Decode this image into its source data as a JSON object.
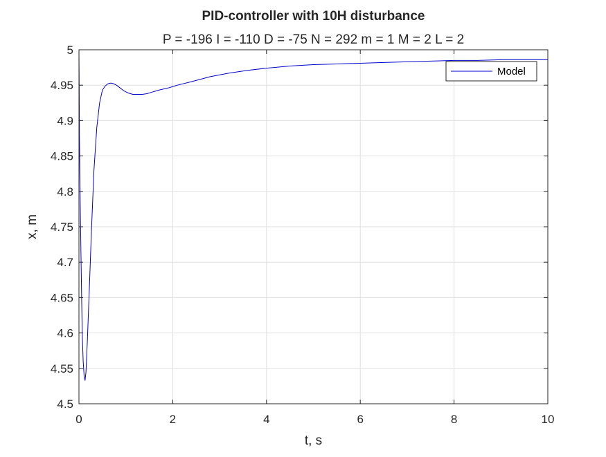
{
  "chart_data": {
    "type": "line",
    "title": "PID-controller with 10H disturbance",
    "subtitle": "P = -196 I = -110 D = -75 N = 292 m = 1 M = 2 L = 2",
    "xlabel": "t, s",
    "ylabel": "x, m",
    "xlim": [
      0,
      10
    ],
    "ylim": [
      4.5,
      5
    ],
    "xticks": [
      0,
      2,
      4,
      6,
      8,
      10
    ],
    "yticks": [
      4.5,
      4.55,
      4.6,
      4.65,
      4.7,
      4.75,
      4.8,
      4.85,
      4.9,
      4.95,
      5
    ],
    "xtick_labels": [
      "0",
      "2",
      "4",
      "6",
      "8",
      "10"
    ],
    "ytick_labels": [
      "4.5",
      "4.55",
      "4.6",
      "4.65",
      "4.7",
      "4.75",
      "4.8",
      "4.85",
      "4.9",
      "4.95",
      "5"
    ],
    "grid": true,
    "legend_position": "top-right",
    "series": [
      {
        "name": "Model",
        "color": "#0000cc",
        "x": [
          0,
          0.005,
          0.01,
          0.02,
          0.03,
          0.05,
          0.07,
          0.09,
          0.11,
          0.13,
          0.15,
          0.18,
          0.22,
          0.27,
          0.32,
          0.38,
          0.44,
          0.5,
          0.56,
          0.62,
          0.68,
          0.74,
          0.8,
          0.88,
          0.96,
          1.05,
          1.15,
          1.25,
          1.35,
          1.45,
          1.55,
          1.7,
          1.9,
          2.1,
          2.4,
          2.8,
          3.2,
          3.6,
          4,
          4.5,
          5,
          5.5,
          6,
          6.5,
          7,
          7.5,
          8,
          8.5,
          9,
          9.5,
          10
        ],
        "y": [
          5.0,
          4.95,
          4.88,
          4.82,
          4.77,
          4.68,
          4.6,
          4.56,
          4.54,
          4.533,
          4.545,
          4.59,
          4.66,
          4.75,
          4.83,
          4.89,
          4.925,
          4.943,
          4.949,
          4.952,
          4.953,
          4.952,
          4.95,
          4.946,
          4.942,
          4.939,
          4.937,
          4.937,
          4.937,
          4.938,
          4.94,
          4.943,
          4.946,
          4.95,
          4.955,
          4.962,
          4.967,
          4.971,
          4.974,
          4.977,
          4.979,
          4.98,
          4.981,
          4.982,
          4.983,
          4.984,
          4.985,
          4.985,
          4.986,
          4.986,
          4.986
        ]
      }
    ]
  }
}
